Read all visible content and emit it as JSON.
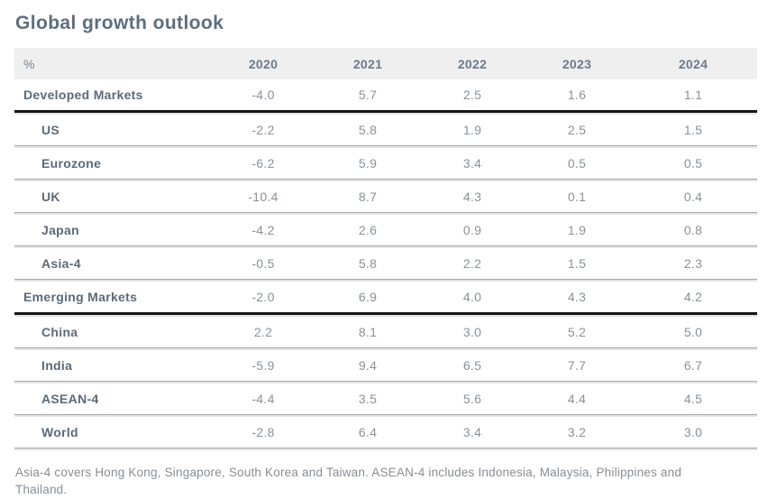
{
  "title": "Global growth outlook",
  "chart_data": {
    "type": "table",
    "title": "Global growth outlook",
    "unit_label": "%",
    "columns": [
      "2020",
      "2021",
      "2022",
      "2023",
      "2024"
    ],
    "rows": [
      {
        "label": "Developed Markets",
        "group": true,
        "values": [
          -4.0,
          5.7,
          2.5,
          1.6,
          1.1
        ],
        "display": [
          "-4.0",
          "5.7",
          "2.5",
          "1.6",
          "1.1"
        ]
      },
      {
        "label": "US",
        "group": false,
        "values": [
          -2.2,
          5.8,
          1.9,
          2.5,
          1.5
        ],
        "display": [
          "-2.2",
          "5.8",
          "1.9",
          "2.5",
          "1.5"
        ]
      },
      {
        "label": "Eurozone",
        "group": false,
        "values": [
          -6.2,
          5.9,
          3.4,
          0.5,
          0.5
        ],
        "display": [
          "-6.2",
          "5.9",
          "3.4",
          "0.5",
          "0.5"
        ]
      },
      {
        "label": "UK",
        "group": false,
        "values": [
          -10.4,
          8.7,
          4.3,
          0.1,
          0.4
        ],
        "display": [
          "-10.4",
          "8.7",
          "4.3",
          "0.1",
          "0.4"
        ]
      },
      {
        "label": "Japan",
        "group": false,
        "values": [
          -4.2,
          2.6,
          0.9,
          1.9,
          0.8
        ],
        "display": [
          "-4.2",
          "2.6",
          "0.9",
          "1.9",
          "0.8"
        ]
      },
      {
        "label": "Asia-4",
        "group": false,
        "values": [
          -0.5,
          5.8,
          2.2,
          1.5,
          2.3
        ],
        "display": [
          "-0.5",
          "5.8",
          "2.2",
          "1.5",
          "2.3"
        ]
      },
      {
        "label": "Emerging Markets",
        "group": true,
        "values": [
          -2.0,
          6.9,
          4.0,
          4.3,
          4.2
        ],
        "display": [
          "-2.0",
          "6.9",
          "4.0",
          "4.3",
          "4.2"
        ]
      },
      {
        "label": "China",
        "group": false,
        "values": [
          2.2,
          8.1,
          3.0,
          5.2,
          5.0
        ],
        "display": [
          "2.2",
          "8.1",
          "3.0",
          "5.2",
          "5.0"
        ]
      },
      {
        "label": "India",
        "group": false,
        "values": [
          -5.9,
          9.4,
          6.5,
          7.7,
          6.7
        ],
        "display": [
          "-5.9",
          "9.4",
          "6.5",
          "7.7",
          "6.7"
        ]
      },
      {
        "label": "ASEAN-4",
        "group": false,
        "values": [
          -4.4,
          3.5,
          5.6,
          4.4,
          4.5
        ],
        "display": [
          "-4.4",
          "3.5",
          "5.6",
          "4.4",
          "4.5"
        ]
      },
      {
        "label": "World",
        "group": false,
        "values": [
          -2.8,
          6.4,
          3.4,
          3.2,
          3.0
        ],
        "display": [
          "-2.8",
          "6.4",
          "3.4",
          "3.2",
          "3.0"
        ]
      }
    ],
    "footnote": "Asia-4 covers Hong Kong, Singapore, South Korea and Taiwan. ASEAN-4 includes Indonesia, Malaysia, Philippines and Thailand.",
    "layout": {
      "grid": "horizontal-dividers-only",
      "legend": "none"
    }
  },
  "colors": {
    "title_text": "#5D6E7E",
    "header_bg": "#EFEFEF",
    "header_text": "#6D7A87",
    "label_text": "#5B6A79",
    "value_text": "#8A9199",
    "divider_dark": "#A6A6A6",
    "divider_light": "#E4E4E4",
    "group_border": "#161616",
    "footnote_text": "#858F97"
  }
}
